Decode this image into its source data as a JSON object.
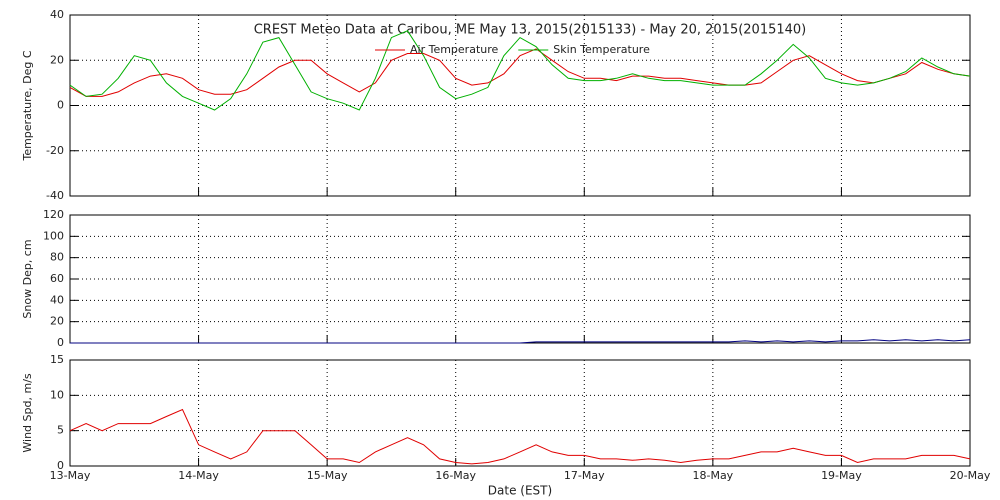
{
  "chart_data": [
    {
      "type": "line",
      "title": "CREST Meteo Data at Caribou, ME   May 13, 2015(2015133) - May 20, 2015(2015140)",
      "ylabel": "Temperature, Deg C",
      "x": [
        0,
        0.125,
        0.25,
        0.375,
        0.5,
        0.625,
        0.75,
        0.875,
        1,
        1.125,
        1.25,
        1.375,
        1.5,
        1.625,
        1.75,
        1.875,
        2,
        2.125,
        2.25,
        2.375,
        2.5,
        2.625,
        2.75,
        2.875,
        3,
        3.125,
        3.25,
        3.375,
        3.5,
        3.625,
        3.75,
        3.875,
        4,
        4.125,
        4.25,
        4.375,
        4.5,
        4.625,
        4.75,
        4.875,
        5,
        5.125,
        5.25,
        5.375,
        5.5,
        5.625,
        5.75,
        5.875,
        6,
        6.125,
        6.25,
        6.375,
        6.5,
        6.625,
        6.75,
        6.875,
        7
      ],
      "series": [
        {
          "name": "Air Temperature",
          "color": "#e00000",
          "values": [
            8,
            4,
            4,
            6,
            10,
            13,
            14,
            12,
            7,
            5,
            5,
            7,
            12,
            17,
            20,
            20,
            14,
            10,
            6,
            10,
            20,
            23,
            23,
            20,
            12,
            9,
            10,
            14,
            22,
            25,
            20,
            15,
            12,
            12,
            11,
            13,
            13,
            12,
            12,
            11,
            10,
            9,
            9,
            10,
            15,
            20,
            22,
            18,
            14,
            11,
            10,
            12,
            14,
            19,
            16,
            14,
            13
          ]
        },
        {
          "name": "Skin Temperature",
          "color": "#00b000",
          "values": [
            9,
            4,
            5,
            12,
            22,
            20,
            10,
            4,
            1,
            -2,
            3,
            14,
            28,
            30,
            18,
            6,
            3,
            1,
            -2,
            12,
            30,
            33,
            22,
            8,
            3,
            5,
            8,
            22,
            30,
            26,
            18,
            12,
            11,
            11,
            12,
            14,
            12,
            11,
            11,
            10,
            9,
            9,
            9,
            14,
            20,
            27,
            21,
            12,
            10,
            9,
            10,
            12,
            15,
            21,
            17,
            14,
            13
          ]
        }
      ],
      "xlim": [
        0,
        7
      ],
      "ylim": [
        -40,
        40
      ],
      "yticks": [
        -40,
        -20,
        0,
        20,
        40
      ],
      "grid": true,
      "legend": "top"
    },
    {
      "type": "line",
      "ylabel": "Snow Dep, cm",
      "x": [
        0,
        0.125,
        0.25,
        0.375,
        0.5,
        0.625,
        0.75,
        0.875,
        1,
        1.125,
        1.25,
        1.375,
        1.5,
        1.625,
        1.75,
        1.875,
        2,
        2.125,
        2.25,
        2.375,
        2.5,
        2.625,
        2.75,
        2.875,
        3,
        3.125,
        3.25,
        3.375,
        3.5,
        3.625,
        3.75,
        3.875,
        4,
        4.125,
        4.25,
        4.375,
        4.5,
        4.625,
        4.75,
        4.875,
        5,
        5.125,
        5.25,
        5.375,
        5.5,
        5.625,
        5.75,
        5.875,
        6,
        6.125,
        6.25,
        6.375,
        6.5,
        6.625,
        6.75,
        6.875,
        7
      ],
      "series": [
        {
          "color": "#000080",
          "values": [
            0,
            0,
            0,
            0,
            0,
            0,
            0,
            0,
            0,
            0,
            0,
            0,
            0,
            0,
            0,
            0,
            0,
            0,
            0,
            0,
            0,
            0,
            0,
            0,
            0,
            0,
            0,
            0,
            0,
            1,
            1,
            1,
            1,
            1,
            1,
            1,
            1,
            1,
            1,
            1,
            1,
            1,
            2,
            1,
            2,
            1,
            2,
            1,
            2,
            2,
            3,
            2,
            3,
            2,
            3,
            2,
            3
          ]
        }
      ],
      "xlim": [
        0,
        7
      ],
      "ylim": [
        0,
        120
      ],
      "yticks": [
        0,
        20,
        40,
        60,
        80,
        100,
        120
      ],
      "grid": true
    },
    {
      "type": "line",
      "ylabel": "Wind Spd, m/s",
      "xlabel": "Date (EST)",
      "x": [
        0,
        0.125,
        0.25,
        0.375,
        0.5,
        0.625,
        0.75,
        0.875,
        1,
        1.125,
        1.25,
        1.375,
        1.5,
        1.625,
        1.75,
        1.875,
        2,
        2.125,
        2.25,
        2.375,
        2.5,
        2.625,
        2.75,
        2.875,
        3,
        3.125,
        3.25,
        3.375,
        3.5,
        3.625,
        3.75,
        3.875,
        4,
        4.125,
        4.25,
        4.375,
        4.5,
        4.625,
        4.75,
        4.875,
        5,
        5.125,
        5.25,
        5.375,
        5.5,
        5.625,
        5.75,
        5.875,
        6,
        6.125,
        6.25,
        6.375,
        6.5,
        6.625,
        6.75,
        6.875,
        7
      ],
      "series": [
        {
          "color": "#e00000",
          "values": [
            5,
            6,
            5,
            6,
            6,
            6,
            7,
            8,
            3,
            2,
            1,
            2,
            5,
            5,
            5,
            3,
            1,
            1,
            0.5,
            2,
            3,
            4,
            3,
            1,
            0.5,
            0.3,
            0.5,
            1,
            2,
            3,
            2,
            1.5,
            1.5,
            1,
            1,
            0.8,
            1,
            0.8,
            0.5,
            0.8,
            1,
            1,
            1.5,
            2,
            2,
            2.5,
            2,
            1.5,
            1.5,
            0.5,
            1,
            1,
            1,
            1.5,
            1.5,
            1.5,
            1
          ]
        }
      ],
      "xlim": [
        0,
        7
      ],
      "ylim": [
        0,
        15
      ],
      "yticks": [
        0,
        5,
        10,
        15
      ],
      "grid": true,
      "xticks": [
        {
          "value": 0,
          "label": "13-May"
        },
        {
          "value": 1,
          "label": "14-May"
        },
        {
          "value": 2,
          "label": "15-May"
        },
        {
          "value": 3,
          "label": "16-May"
        },
        {
          "value": 4,
          "label": "17-May"
        },
        {
          "value": 5,
          "label": "18-May"
        },
        {
          "value": 6,
          "label": "19-May"
        },
        {
          "value": 7,
          "label": "20-May"
        }
      ]
    }
  ]
}
